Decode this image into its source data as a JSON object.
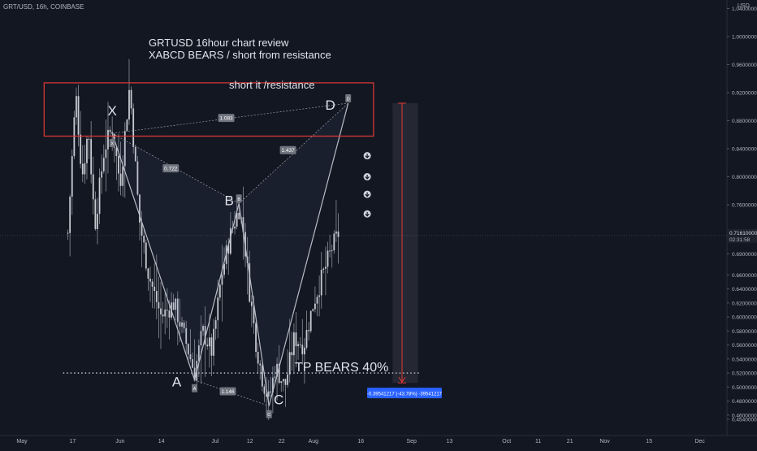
{
  "header": {
    "symbol": "GRT/USD, 16h, COINBASE",
    "currency": "USD"
  },
  "chart_data": {
    "type": "candlestick",
    "title": "GRTUSD 16hour chart review",
    "subtitle": "XABCD BEARS / short from resistance",
    "y_ticks": [
      1.04,
      1.0,
      0.96,
      0.92,
      0.88,
      0.84,
      0.8,
      0.76,
      0.72,
      0.69,
      0.66,
      0.64,
      0.62,
      0.6,
      0.58,
      0.56,
      0.54,
      0.52,
      0.5,
      0.48,
      0.46,
      0.454
    ],
    "y_tick_labels": [
      "1.04000000",
      "1.00000000",
      "0.96000000",
      "0.92000000",
      "0.88000000",
      "0.84000000",
      "0.80000000",
      "0.76000000",
      "",
      "0.69000000",
      "0.66000000",
      "0.64000000",
      "0.62000000",
      "0.60000000",
      "0.58000000",
      "0.56000000",
      "0.54000000",
      "0.52000000",
      "0.50000000",
      "0.48000000",
      "0.46000000",
      "0.45400000"
    ],
    "x_labels": [
      {
        "label": "May",
        "day": 0
      },
      {
        "label": "17",
        "day": 16
      },
      {
        "label": "Jun",
        "day": 31
      },
      {
        "label": "14",
        "day": 44
      },
      {
        "label": "Jul",
        "day": 61
      },
      {
        "label": "12",
        "day": 72
      },
      {
        "label": "22",
        "day": 82
      },
      {
        "label": "Aug",
        "day": 92
      },
      {
        "label": "16",
        "day": 107
      },
      {
        "label": "Sep",
        "day": 123
      },
      {
        "label": "13",
        "day": 135
      },
      {
        "label": "Oct",
        "day": 153
      },
      {
        "label": "11",
        "day": 163
      },
      {
        "label": "21",
        "day": 173
      },
      {
        "label": "Nov",
        "day": 184
      },
      {
        "label": "15",
        "day": 198
      },
      {
        "label": "Dec",
        "day": 214
      }
    ],
    "current_price": {
      "value": 0.7161,
      "label": "0.71610000",
      "countdown": "02:31:58"
    },
    "pattern": {
      "name": "XABCD",
      "points": [
        {
          "name": "X",
          "day": 28.5,
          "price": 0.862,
          "tag": "X"
        },
        {
          "name": "A",
          "day": 54.5,
          "price": 0.51,
          "tag": "A"
        },
        {
          "name": "B",
          "day": 68.5,
          "price": 0.762,
          "tag": "B"
        },
        {
          "name": "C",
          "day": 78,
          "price": 0.473,
          "tag": "C"
        },
        {
          "name": "D",
          "day": 103,
          "price": 0.905,
          "tag": "D"
        }
      ],
      "ratios": [
        {
          "value": "1.083",
          "day": 64.5,
          "price": 0.884
        },
        {
          "value": "0.722",
          "day": 47,
          "price": 0.812
        },
        {
          "value": "1.146",
          "day": 65,
          "price": 0.494
        },
        {
          "value": "1.437",
          "day": 84,
          "price": 0.838
        }
      ]
    },
    "resistance_zone": {
      "day_start": 7,
      "day_end": 111,
      "price_top": 0.934,
      "price_bottom": 0.858
    },
    "annotations": {
      "resistance_label": "short it /resistance",
      "tp_label": "TP BEARS 40%",
      "tp_level": 0.52,
      "measure_label": "-0.39541217 (-43.78%) -39541217"
    },
    "short_projection": {
      "day": 120,
      "price_from": 0.905,
      "price_to": 0.506
    },
    "arrows_day": 109,
    "arrow_prices": [
      0.83,
      0.8,
      0.775,
      0.747
    ]
  }
}
